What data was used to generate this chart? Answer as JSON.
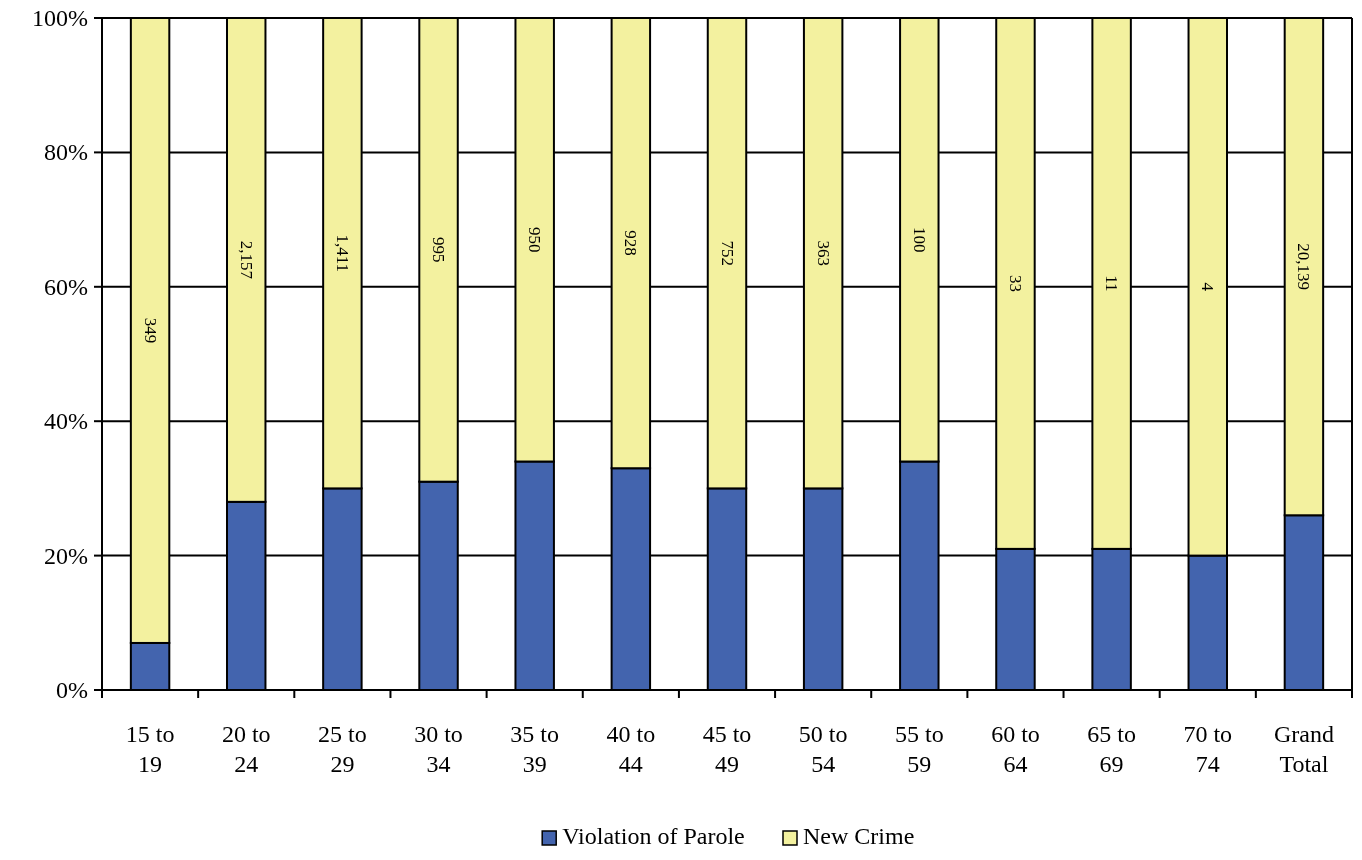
{
  "chart_data": {
    "type": "bar",
    "stacked": true,
    "categories": [
      "15 to 19",
      "20 to 24",
      "25 to 29",
      "30 to 34",
      "35 to 39",
      "40 to 44",
      "45 to 49",
      "50 to 54",
      "55 to 59",
      "60 to 64",
      "65 to 69",
      "70 to 74",
      "Grand Total"
    ],
    "series": [
      {
        "name": "Violation of Parole",
        "color": "#4364ae",
        "values": [
          7,
          28,
          30,
          31,
          34,
          33,
          30,
          30,
          34,
          21,
          21,
          20,
          26
        ]
      },
      {
        "name": "New Crime",
        "color": "#f3f19f",
        "values": [
          93,
          72,
          70,
          69,
          66,
          67,
          70,
          70,
          66,
          79,
          79,
          80,
          74
        ]
      }
    ],
    "annotations": [
      "349",
      "2,157",
      "1,411",
      "995",
      "950",
      "928",
      "752",
      "363",
      "100",
      "33",
      "11",
      "4",
      "20,139"
    ],
    "ylim": [
      0,
      100
    ],
    "yticks": [
      {
        "value": 0,
        "label": "0%"
      },
      {
        "value": 20,
        "label": "20%"
      },
      {
        "value": 40,
        "label": "40%"
      },
      {
        "value": 60,
        "label": "60%"
      },
      {
        "value": 80,
        "label": "80%"
      },
      {
        "value": 100,
        "label": "100%"
      }
    ],
    "grid": "y",
    "legend": "bottom"
  }
}
